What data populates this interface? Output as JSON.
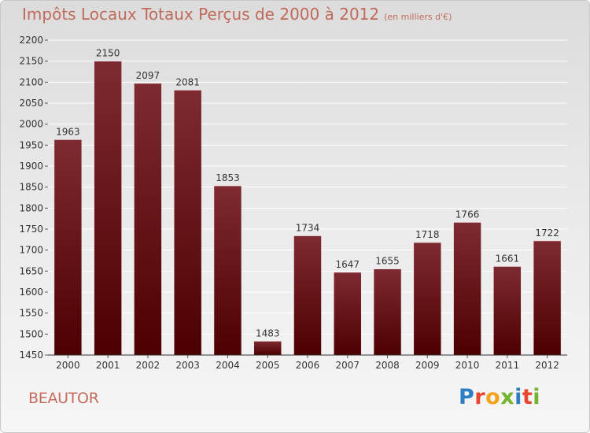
{
  "header": {
    "title": "Impôts Locaux Totaux Perçus de 2000 à 2012",
    "subtitle": "(en milliers d'€)"
  },
  "footer": {
    "commune": "BEAUTOR",
    "logo_text": "Proxiti"
  },
  "colors": {
    "bar_top": "#7e2a31",
    "bar_bottom": "#4c0000",
    "title": "#c06a5a",
    "gridline": "#ffffff"
  },
  "chart_data": {
    "type": "bar",
    "categories": [
      "2000",
      "2001",
      "2002",
      "2003",
      "2004",
      "2005",
      "2006",
      "2007",
      "2008",
      "2009",
      "2010",
      "2011",
      "2012"
    ],
    "values": [
      1963,
      2150,
      2097,
      2081,
      1853,
      1483,
      1734,
      1647,
      1655,
      1718,
      1766,
      1661,
      1722
    ],
    "ylim": [
      1450,
      2200
    ],
    "yticks": [
      1450,
      1500,
      1550,
      1600,
      1650,
      1700,
      1750,
      1800,
      1850,
      1900,
      1950,
      2000,
      2050,
      2100,
      2150,
      2200
    ],
    "grid": true,
    "data_labels": true
  }
}
